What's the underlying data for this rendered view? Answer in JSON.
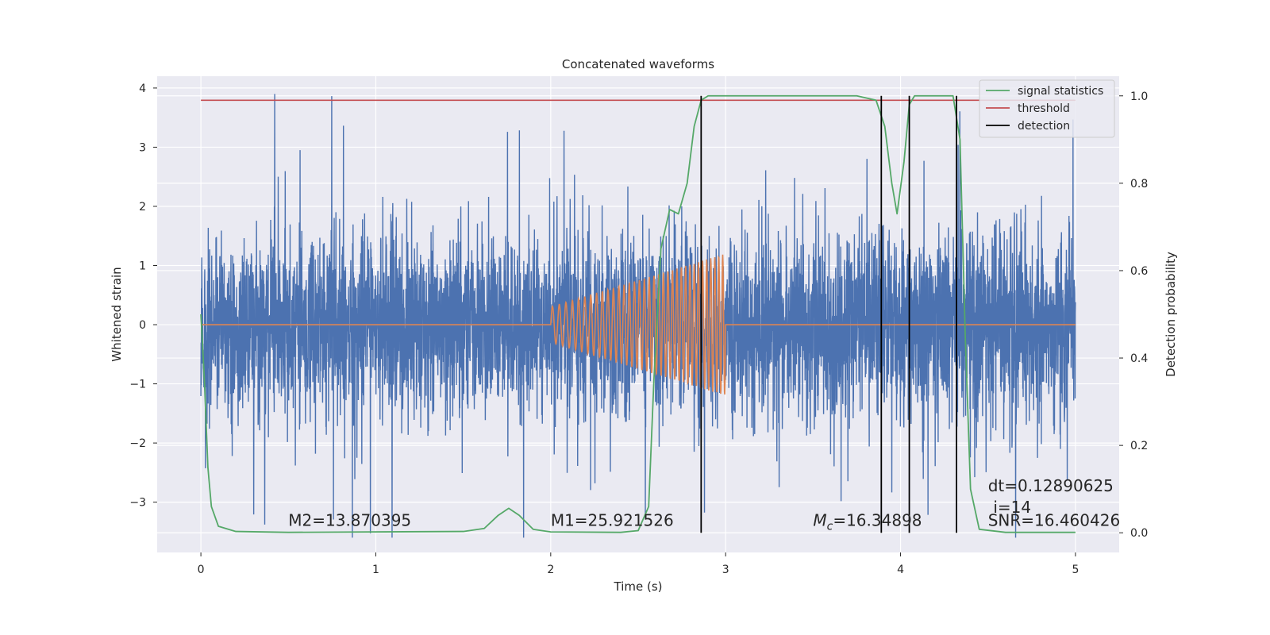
{
  "chart_data": {
    "type": "line",
    "title": "Concatenated waveforms",
    "xlabel": "Time (s)",
    "ylabel_left": "Whitened strain",
    "ylabel_right": "Detection probability",
    "xlim": [
      -0.25,
      5.25
    ],
    "ylim_left": [
      -3.85,
      4.2
    ],
    "ylim_right": [
      -0.045,
      1.045
    ],
    "x_ticks": [
      0,
      1,
      2,
      3,
      4,
      5
    ],
    "y_ticks_left": [
      -3,
      -2,
      -1,
      0,
      1,
      2,
      3,
      4
    ],
    "y_ticks_right": [
      0.0,
      0.2,
      0.4,
      0.6,
      0.8,
      1.0
    ],
    "x_tick_labels": [
      "0",
      "1",
      "2",
      "3",
      "4",
      "5"
    ],
    "y_tick_labels_left": [
      "−3",
      "−2",
      "−1",
      "0",
      "1",
      "2",
      "3",
      "4"
    ],
    "y_tick_labels_right": [
      "0.0",
      "0.2",
      "0.4",
      "0.6",
      "0.8",
      "1.0"
    ],
    "grid": true,
    "legend_position": "top-right",
    "background": "#eaeaf2",
    "series": [
      {
        "name": "strain noise",
        "axis": "left",
        "color": "#4c72b0",
        "x_range": [
          0,
          5
        ],
        "typical_std": 0.75,
        "peak_range": [
          -3.6,
          3.9
        ]
      },
      {
        "name": "template waveform",
        "axis": "left",
        "color": "#dd8452",
        "x_range": [
          0,
          5
        ],
        "chirp_start": 2.0,
        "chirp_end": 3.0,
        "amplitude_start": 0.3,
        "amplitude_end": 1.2,
        "freq_start": 25,
        "freq_end": 45
      },
      {
        "name": "signal statistics",
        "axis": "right",
        "color": "#55a868",
        "points": [
          [
            0.0,
            0.5
          ],
          [
            0.02,
            0.35
          ],
          [
            0.04,
            0.15
          ],
          [
            0.06,
            0.06
          ],
          [
            0.1,
            0.015
          ],
          [
            0.2,
            0.003
          ],
          [
            0.5,
            0.001
          ],
          [
            1.5,
            0.003
          ],
          [
            1.62,
            0.01
          ],
          [
            1.7,
            0.04
          ],
          [
            1.76,
            0.056
          ],
          [
            1.82,
            0.04
          ],
          [
            1.9,
            0.008
          ],
          [
            2.0,
            0.002
          ],
          [
            2.4,
            0.001
          ],
          [
            2.5,
            0.005
          ],
          [
            2.56,
            0.06
          ],
          [
            2.59,
            0.35
          ],
          [
            2.63,
            0.65
          ],
          [
            2.68,
            0.74
          ],
          [
            2.73,
            0.73
          ],
          [
            2.78,
            0.8
          ],
          [
            2.82,
            0.93
          ],
          [
            2.86,
            0.99
          ],
          [
            2.9,
            1.0
          ],
          [
            3.0,
            1.0
          ],
          [
            3.75,
            1.0
          ],
          [
            3.86,
            0.99
          ],
          [
            3.91,
            0.93
          ],
          [
            3.95,
            0.8
          ],
          [
            3.98,
            0.73
          ],
          [
            4.02,
            0.85
          ],
          [
            4.05,
            0.98
          ],
          [
            4.08,
            1.0
          ],
          [
            4.3,
            1.0
          ],
          [
            4.34,
            0.9
          ],
          [
            4.37,
            0.45
          ],
          [
            4.4,
            0.1
          ],
          [
            4.45,
            0.008
          ],
          [
            4.6,
            0.001
          ],
          [
            5.0,
            0.001
          ]
        ]
      },
      {
        "name": "threshold",
        "axis": "right",
        "color": "#c44e52",
        "x": [
          0,
          5
        ],
        "y": [
          0.99,
          0.99
        ]
      },
      {
        "name": "detection",
        "axis": "right",
        "color": "#000000",
        "x_positions": [
          2.86,
          3.89,
          4.05,
          4.32
        ],
        "y_range": [
          0.0,
          1.0
        ]
      }
    ],
    "legend": [
      {
        "label": "signal statistics",
        "color": "#55a868"
      },
      {
        "label": "threshold",
        "color": "#c44e52"
      },
      {
        "label": "detection",
        "color": "#000000"
      }
    ],
    "annotations": [
      {
        "text": "M2=13.870395",
        "x": 0.5,
        "y": -3.4,
        "axis": "left"
      },
      {
        "text": "M1=25.921526",
        "x": 2.0,
        "y": -3.4,
        "axis": "left"
      },
      {
        "text_italic": "M",
        "text_sub": "c",
        "text": "=16.34898",
        "x": 3.5,
        "y": -3.4,
        "axis": "left"
      },
      {
        "text": "dt=0.12890625",
        "x": 4.5,
        "y": -2.82,
        "axis": "left"
      },
      {
        "text": "i=14",
        "x": 4.53,
        "y": -3.18,
        "axis": "left"
      },
      {
        "text": "SNR=16.460426",
        "x": 4.5,
        "y": -3.4,
        "axis": "left"
      }
    ]
  }
}
